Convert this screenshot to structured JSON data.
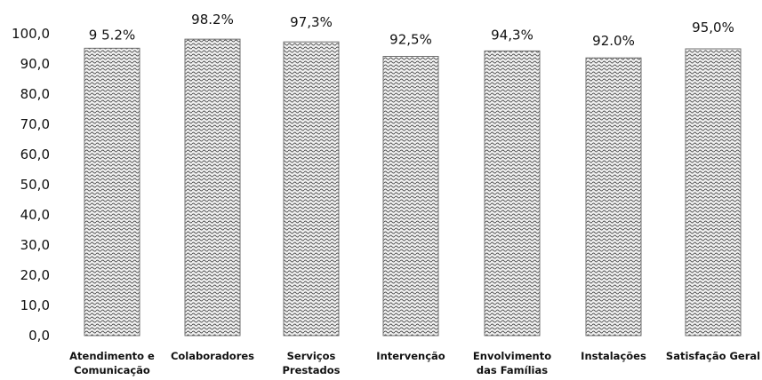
{
  "chart_data": {
    "type": "bar",
    "categories": [
      [
        "Atendimento e",
        "Comunicação"
      ],
      [
        "Colaboradores"
      ],
      [
        "Serviços",
        "Prestados"
      ],
      [
        "Intervenção"
      ],
      [
        "Envolvimento",
        "das Famílias"
      ],
      [
        "Instalações"
      ],
      [
        "Satisfação Geral"
      ]
    ],
    "values": [
      95.2,
      98.2,
      97.3,
      92.5,
      94.3,
      92.0,
      95.0
    ],
    "data_labels": [
      "9 5.2%",
      "98.2%",
      "97,3%",
      "92,5%",
      "94,3%",
      "92.0%",
      "95,0%"
    ],
    "y_ticks": [
      "0,0",
      "10,0",
      "20,0",
      "30,0",
      "40,0",
      "50,0",
      "60,0",
      "70,0",
      "80,0",
      "90,0",
      "100,0"
    ],
    "ylim": [
      0,
      100
    ],
    "grid": false,
    "legend": "none",
    "bar_color": "#6f6f6f"
  }
}
